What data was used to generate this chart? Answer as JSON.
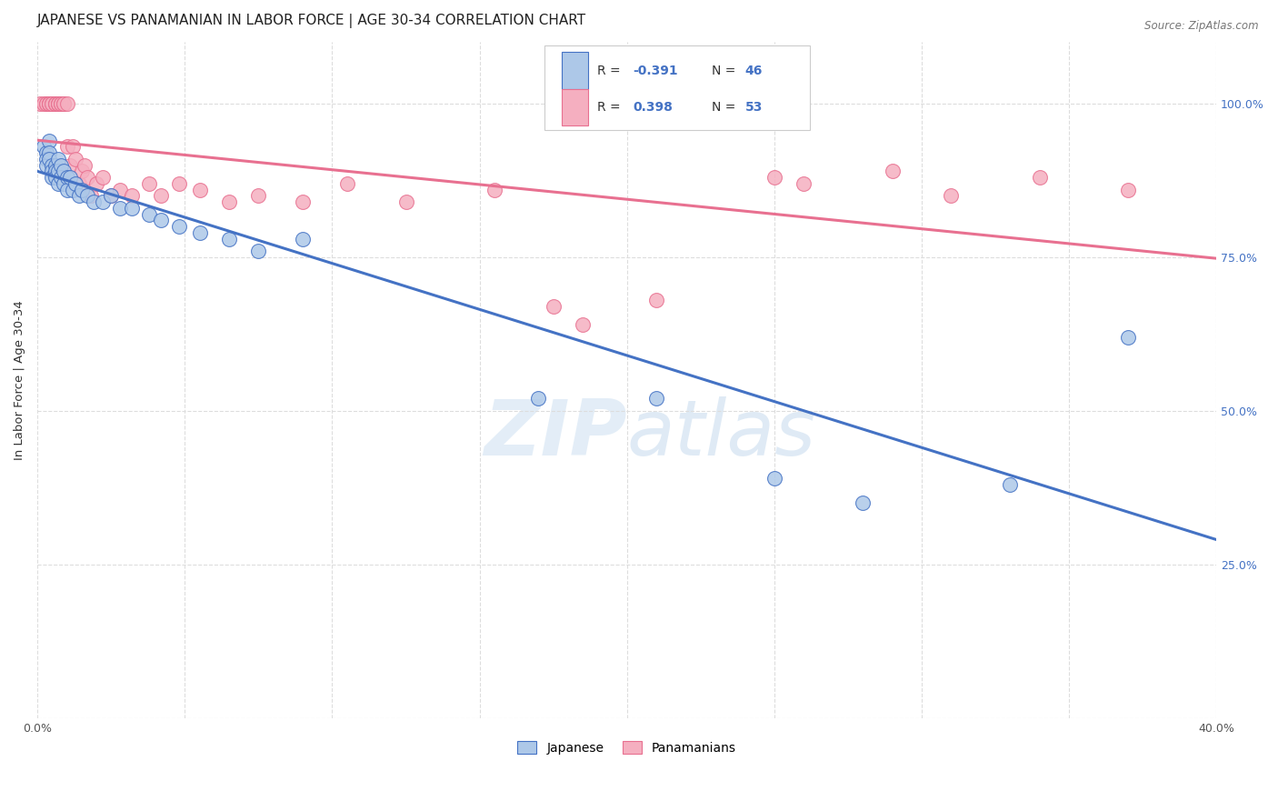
{
  "title": "JAPANESE VS PANAMANIAN IN LABOR FORCE | AGE 30-34 CORRELATION CHART",
  "source_text": "Source: ZipAtlas.com",
  "ylabel": "In Labor Force | Age 30-34",
  "x_min": 0.0,
  "x_max": 0.4,
  "y_min": 0.0,
  "y_max": 1.1,
  "x_ticks": [
    0.0,
    0.05,
    0.1,
    0.15,
    0.2,
    0.25,
    0.3,
    0.35,
    0.4
  ],
  "y_ticks": [
    0.0,
    0.25,
    0.5,
    0.75,
    1.0
  ],
  "watermark_zip": "ZIP",
  "watermark_atlas": "atlas",
  "legend_R_japanese": "-0.391",
  "legend_N_japanese": "46",
  "legend_R_panamanian": "0.398",
  "legend_N_panamanian": "53",
  "japanese_color": "#adc8e8",
  "panamanian_color": "#f5afc0",
  "trend_japanese_color": "#4472c4",
  "trend_panamanian_color": "#e87090",
  "japanese_x": [
    0.002,
    0.003,
    0.003,
    0.003,
    0.004,
    0.004,
    0.004,
    0.005,
    0.005,
    0.005,
    0.006,
    0.006,
    0.006,
    0.007,
    0.007,
    0.007,
    0.008,
    0.008,
    0.009,
    0.009,
    0.01,
    0.01,
    0.011,
    0.012,
    0.013,
    0.014,
    0.015,
    0.017,
    0.019,
    0.022,
    0.025,
    0.028,
    0.032,
    0.038,
    0.042,
    0.048,
    0.055,
    0.065,
    0.075,
    0.09,
    0.17,
    0.21,
    0.25,
    0.28,
    0.33,
    0.37
  ],
  "japanese_y": [
    0.93,
    0.92,
    0.91,
    0.9,
    0.94,
    0.92,
    0.91,
    0.9,
    0.89,
    0.88,
    0.9,
    0.89,
    0.88,
    0.91,
    0.89,
    0.87,
    0.9,
    0.88,
    0.89,
    0.87,
    0.88,
    0.86,
    0.88,
    0.86,
    0.87,
    0.85,
    0.86,
    0.85,
    0.84,
    0.84,
    0.85,
    0.83,
    0.83,
    0.82,
    0.81,
    0.8,
    0.79,
    0.78,
    0.76,
    0.78,
    0.52,
    0.52,
    0.39,
    0.35,
    0.38,
    0.62
  ],
  "panamanian_x": [
    0.001,
    0.002,
    0.003,
    0.003,
    0.004,
    0.004,
    0.004,
    0.005,
    0.005,
    0.006,
    0.006,
    0.006,
    0.007,
    0.007,
    0.007,
    0.008,
    0.008,
    0.009,
    0.009,
    0.01,
    0.01,
    0.011,
    0.012,
    0.013,
    0.014,
    0.015,
    0.016,
    0.017,
    0.018,
    0.02,
    0.022,
    0.025,
    0.028,
    0.032,
    0.038,
    0.042,
    0.048,
    0.055,
    0.065,
    0.075,
    0.09,
    0.105,
    0.125,
    0.155,
    0.175,
    0.185,
    0.21,
    0.25,
    0.26,
    0.29,
    0.31,
    0.34,
    0.37
  ],
  "panamanian_y": [
    1.0,
    1.0,
    1.0,
    1.0,
    1.0,
    1.0,
    1.0,
    1.0,
    1.0,
    1.0,
    1.0,
    1.0,
    1.0,
    1.0,
    1.0,
    1.0,
    1.0,
    1.0,
    1.0,
    1.0,
    0.93,
    0.9,
    0.93,
    0.91,
    0.87,
    0.89,
    0.9,
    0.88,
    0.85,
    0.87,
    0.88,
    0.85,
    0.86,
    0.85,
    0.87,
    0.85,
    0.87,
    0.86,
    0.84,
    0.85,
    0.84,
    0.87,
    0.84,
    0.86,
    0.67,
    0.64,
    0.68,
    0.88,
    0.87,
    0.89,
    0.85,
    0.88,
    0.86
  ],
  "background_color": "#ffffff",
  "grid_color": "#dddddd",
  "title_fontsize": 11,
  "tick_fontsize": 9,
  "tick_color_right": "#4472c4"
}
